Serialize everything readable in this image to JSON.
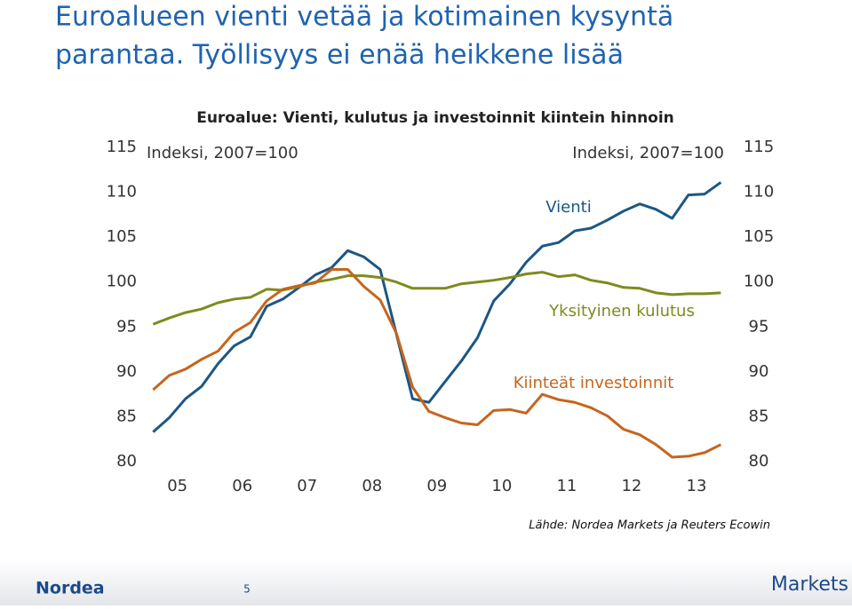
{
  "slide": {
    "title": [
      "Euroalueen vienti vetää ja kotimainen kysyntä",
      "parantaa. Työllisyys ei enää heikkene lisää"
    ],
    "source": "Lähde: Nordea Markets ja Reuters Ecowin",
    "footer": {
      "logo": "Nordea",
      "page": 5,
      "brand": "Markets"
    }
  },
  "chart_data": {
    "type": "line",
    "title": "Euroalue: Vienti, kulutus ja investoinnit kiintein hinnoin",
    "y_label": "Indeksi, 2007=100",
    "y2_label": "Indeksi, 2007=100",
    "x": [
      2005,
      2005.25,
      2005.5,
      2005.75,
      2006,
      2006.25,
      2006.5,
      2006.75,
      2007,
      2007.25,
      2007.5,
      2007.75,
      2008,
      2008.25,
      2008.5,
      2008.75,
      2009,
      2009.25,
      2009.5,
      2009.75,
      2010,
      2010.25,
      2010.5,
      2010.75,
      2011,
      2011.25,
      2011.5,
      2011.75,
      2012,
      2012.25,
      2012.5,
      2012.75,
      2013,
      2013.25,
      2013.5,
      2013.75
    ],
    "xlim": [
      2004.9,
      2013.8
    ],
    "xticks": [
      {
        "value": 2005.375,
        "label": "05"
      },
      {
        "value": 2006.375,
        "label": "06"
      },
      {
        "value": 2007.375,
        "label": "07"
      },
      {
        "value": 2008.375,
        "label": "08"
      },
      {
        "value": 2009.375,
        "label": "09"
      },
      {
        "value": 2010.375,
        "label": "10"
      },
      {
        "value": 2011.375,
        "label": "11"
      },
      {
        "value": 2012.375,
        "label": "12"
      },
      {
        "value": 2013.375,
        "label": "13"
      }
    ],
    "ylim": [
      80,
      115
    ],
    "yticks": [
      80,
      85,
      90,
      95,
      100,
      105,
      110,
      115
    ],
    "y2lim": [
      80,
      115
    ],
    "y2ticks": [
      80,
      85,
      90,
      95,
      100,
      105,
      110,
      115
    ],
    "grid": false,
    "series": [
      {
        "name": "Vienti",
        "color": "#1b5784",
        "values": [
          83.3,
          84.9,
          87.0,
          88.4,
          90.9,
          92.9,
          93.9,
          97.3,
          98.1,
          99.4,
          100.8,
          101.6,
          103.5,
          102.8,
          101.4,
          94.2,
          87.0,
          86.6,
          88.9,
          91.2,
          93.8,
          97.9,
          99.8,
          102.2,
          104.0,
          104.4,
          105.7,
          106.0,
          106.9,
          107.9,
          108.7,
          108.1,
          107.1,
          109.7,
          109.8,
          111.1
        ]
      },
      {
        "name": "Yksityinen kulutus",
        "color": "#7f8a1e",
        "values": [
          95.3,
          96.0,
          96.6,
          97.0,
          97.7,
          98.1,
          98.3,
          99.2,
          99.1,
          99.5,
          100.0,
          100.3,
          100.7,
          100.7,
          100.5,
          100.0,
          99.3,
          99.3,
          99.3,
          99.8,
          100.0,
          100.2,
          100.5,
          100.9,
          101.1,
          100.6,
          100.8,
          100.2,
          99.9,
          99.4,
          99.3,
          98.8,
          98.6,
          98.7,
          98.7,
          98.8
        ]
      },
      {
        "name": "Kiinteät investoinnit",
        "color": "#c6651e",
        "values": [
          88.0,
          89.6,
          90.3,
          91.4,
          92.3,
          94.4,
          95.5,
          97.9,
          99.2,
          99.6,
          99.9,
          101.4,
          101.4,
          99.5,
          98.0,
          94.3,
          88.3,
          85.6,
          84.9,
          84.3,
          84.1,
          85.7,
          85.8,
          85.4,
          87.5,
          86.9,
          86.6,
          86.0,
          85.1,
          83.6,
          83.0,
          81.9,
          80.5,
          80.6,
          81.0,
          81.9
        ]
      }
    ]
  }
}
